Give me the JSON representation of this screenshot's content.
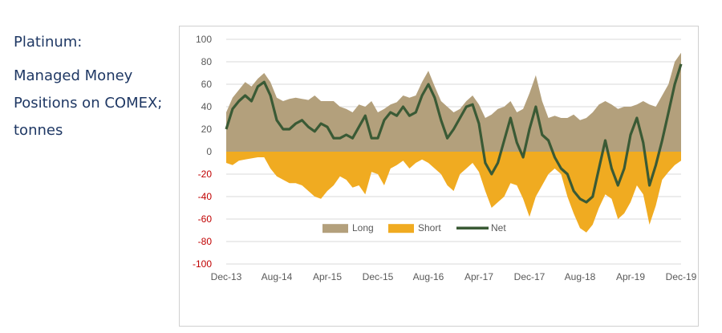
{
  "sidebar": {
    "title": "Platinum:",
    "description_lines": [
      "Managed Money",
      "Positions on COMEX;",
      "tonnes"
    ]
  },
  "colors": {
    "long": "#b3a07c",
    "short": "#f0ab21",
    "net": "#3a5a35",
    "grid": "#d9d9d9",
    "axis_text": "#595959",
    "negative_text": "#c00000",
    "side_text": "#1f3864"
  },
  "chart_data": {
    "type": "area",
    "title": "",
    "xlabel": "",
    "ylabel": "",
    "ylim": [
      -100,
      100
    ],
    "y_ticks": [
      100,
      80,
      60,
      40,
      20,
      0,
      -20,
      -40,
      -60,
      -80,
      -100
    ],
    "x_tick_labels": [
      "Dec-13",
      "Aug-14",
      "Apr-15",
      "Dec-15",
      "Aug-16",
      "Apr-17",
      "Dec-17",
      "Aug-18",
      "Apr-19",
      "Dec-19"
    ],
    "x_tick_index": [
      0,
      8,
      16,
      24,
      32,
      40,
      48,
      56,
      64,
      72
    ],
    "x_count": 73,
    "grid": "horizontal",
    "legend": {
      "placement": "bottom-center",
      "entries": [
        "Long",
        "Short",
        "Net"
      ]
    },
    "series": [
      {
        "name": "Long",
        "style": "area",
        "values": [
          35,
          48,
          55,
          62,
          58,
          65,
          70,
          62,
          48,
          45,
          47,
          48,
          47,
          46,
          50,
          45,
          45,
          45,
          40,
          38,
          35,
          42,
          40,
          45,
          35,
          38,
          42,
          44,
          50,
          48,
          50,
          62,
          72,
          58,
          45,
          40,
          35,
          38,
          45,
          50,
          42,
          30,
          33,
          38,
          40,
          45,
          35,
          38,
          52,
          68,
          45,
          30,
          32,
          30,
          30,
          33,
          28,
          30,
          35,
          42,
          45,
          42,
          38,
          40,
          40,
          42,
          45,
          42,
          40,
          50,
          60,
          80,
          88
        ]
      },
      {
        "name": "Short",
        "style": "area",
        "values": [
          -10,
          -12,
          -8,
          -7,
          -6,
          -5,
          -5,
          -15,
          -22,
          -25,
          -28,
          -28,
          -30,
          -35,
          -40,
          -42,
          -35,
          -30,
          -22,
          -25,
          -32,
          -30,
          -38,
          -18,
          -20,
          -30,
          -15,
          -12,
          -8,
          -15,
          -10,
          -7,
          -10,
          -15,
          -20,
          -30,
          -35,
          -20,
          -15,
          -10,
          -18,
          -35,
          -50,
          -45,
          -40,
          -28,
          -30,
          -42,
          -58,
          -40,
          -30,
          -20,
          -15,
          -20,
          -40,
          -55,
          -68,
          -72,
          -65,
          -50,
          -38,
          -42,
          -60,
          -55,
          -45,
          -30,
          -38,
          -65,
          -48,
          -25,
          -18,
          -12,
          -8
        ]
      },
      {
        "name": "Net",
        "style": "line",
        "values": [
          20,
          38,
          45,
          50,
          45,
          58,
          62,
          50,
          28,
          20,
          20,
          25,
          28,
          22,
          18,
          25,
          22,
          12,
          12,
          15,
          12,
          22,
          32,
          12,
          12,
          28,
          35,
          32,
          40,
          32,
          35,
          50,
          60,
          48,
          28,
          12,
          20,
          30,
          40,
          42,
          25,
          -10,
          -20,
          -10,
          10,
          30,
          8,
          -5,
          20,
          40,
          15,
          10,
          -5,
          -15,
          -20,
          -35,
          -42,
          -45,
          -40,
          -15,
          10,
          -15,
          -30,
          -15,
          15,
          30,
          8,
          -30,
          -12,
          10,
          35,
          60,
          78
        ]
      }
    ]
  }
}
